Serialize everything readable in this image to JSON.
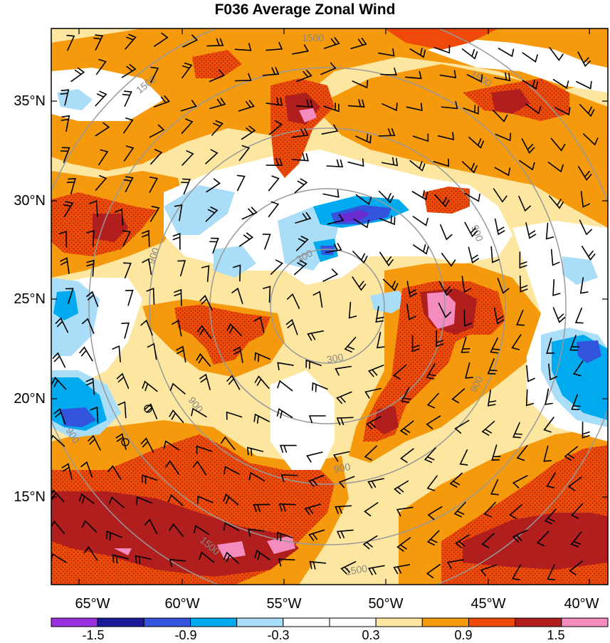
{
  "title": "F036 Average Zonal Wind",
  "lat_labels": [
    "35°N",
    "30°N",
    "25°N",
    "20°N",
    "15°N"
  ],
  "lon_labels": [
    "65°W",
    "60°W",
    "55°W",
    "50°W",
    "45°W",
    "40°W"
  ],
  "contour_labels": [
    "1500",
    "1500",
    "1500",
    "900",
    "900",
    "900",
    "900",
    "900",
    "300",
    "300",
    "900",
    "1500",
    "1500"
  ],
  "colorbar": {
    "labels": [
      "-1.5",
      "-0.9",
      "-0.3",
      "0.3",
      "0.9",
      "1.5"
    ],
    "colors": [
      "#9b30e0",
      "#1a1a9a",
      "#3355dd",
      "#00aaee",
      "#aaddf8",
      "#ffffff",
      "#ffffff",
      "#fde7a0",
      "#f59a0c",
      "#f04a0a",
      "#b01e1e",
      "#f48cc0"
    ]
  },
  "palette": {
    "orange": "#f59a0c",
    "red": "#f04a0a",
    "darkred": "#b01e1e",
    "pink": "#f48cc0",
    "yellow": "#fde7a0",
    "lightblue": "#aaddf8",
    "blue": "#00aaee",
    "darkblue": "#1a1a9a",
    "purple": "#6a2bd0",
    "contour": "#999999"
  }
}
